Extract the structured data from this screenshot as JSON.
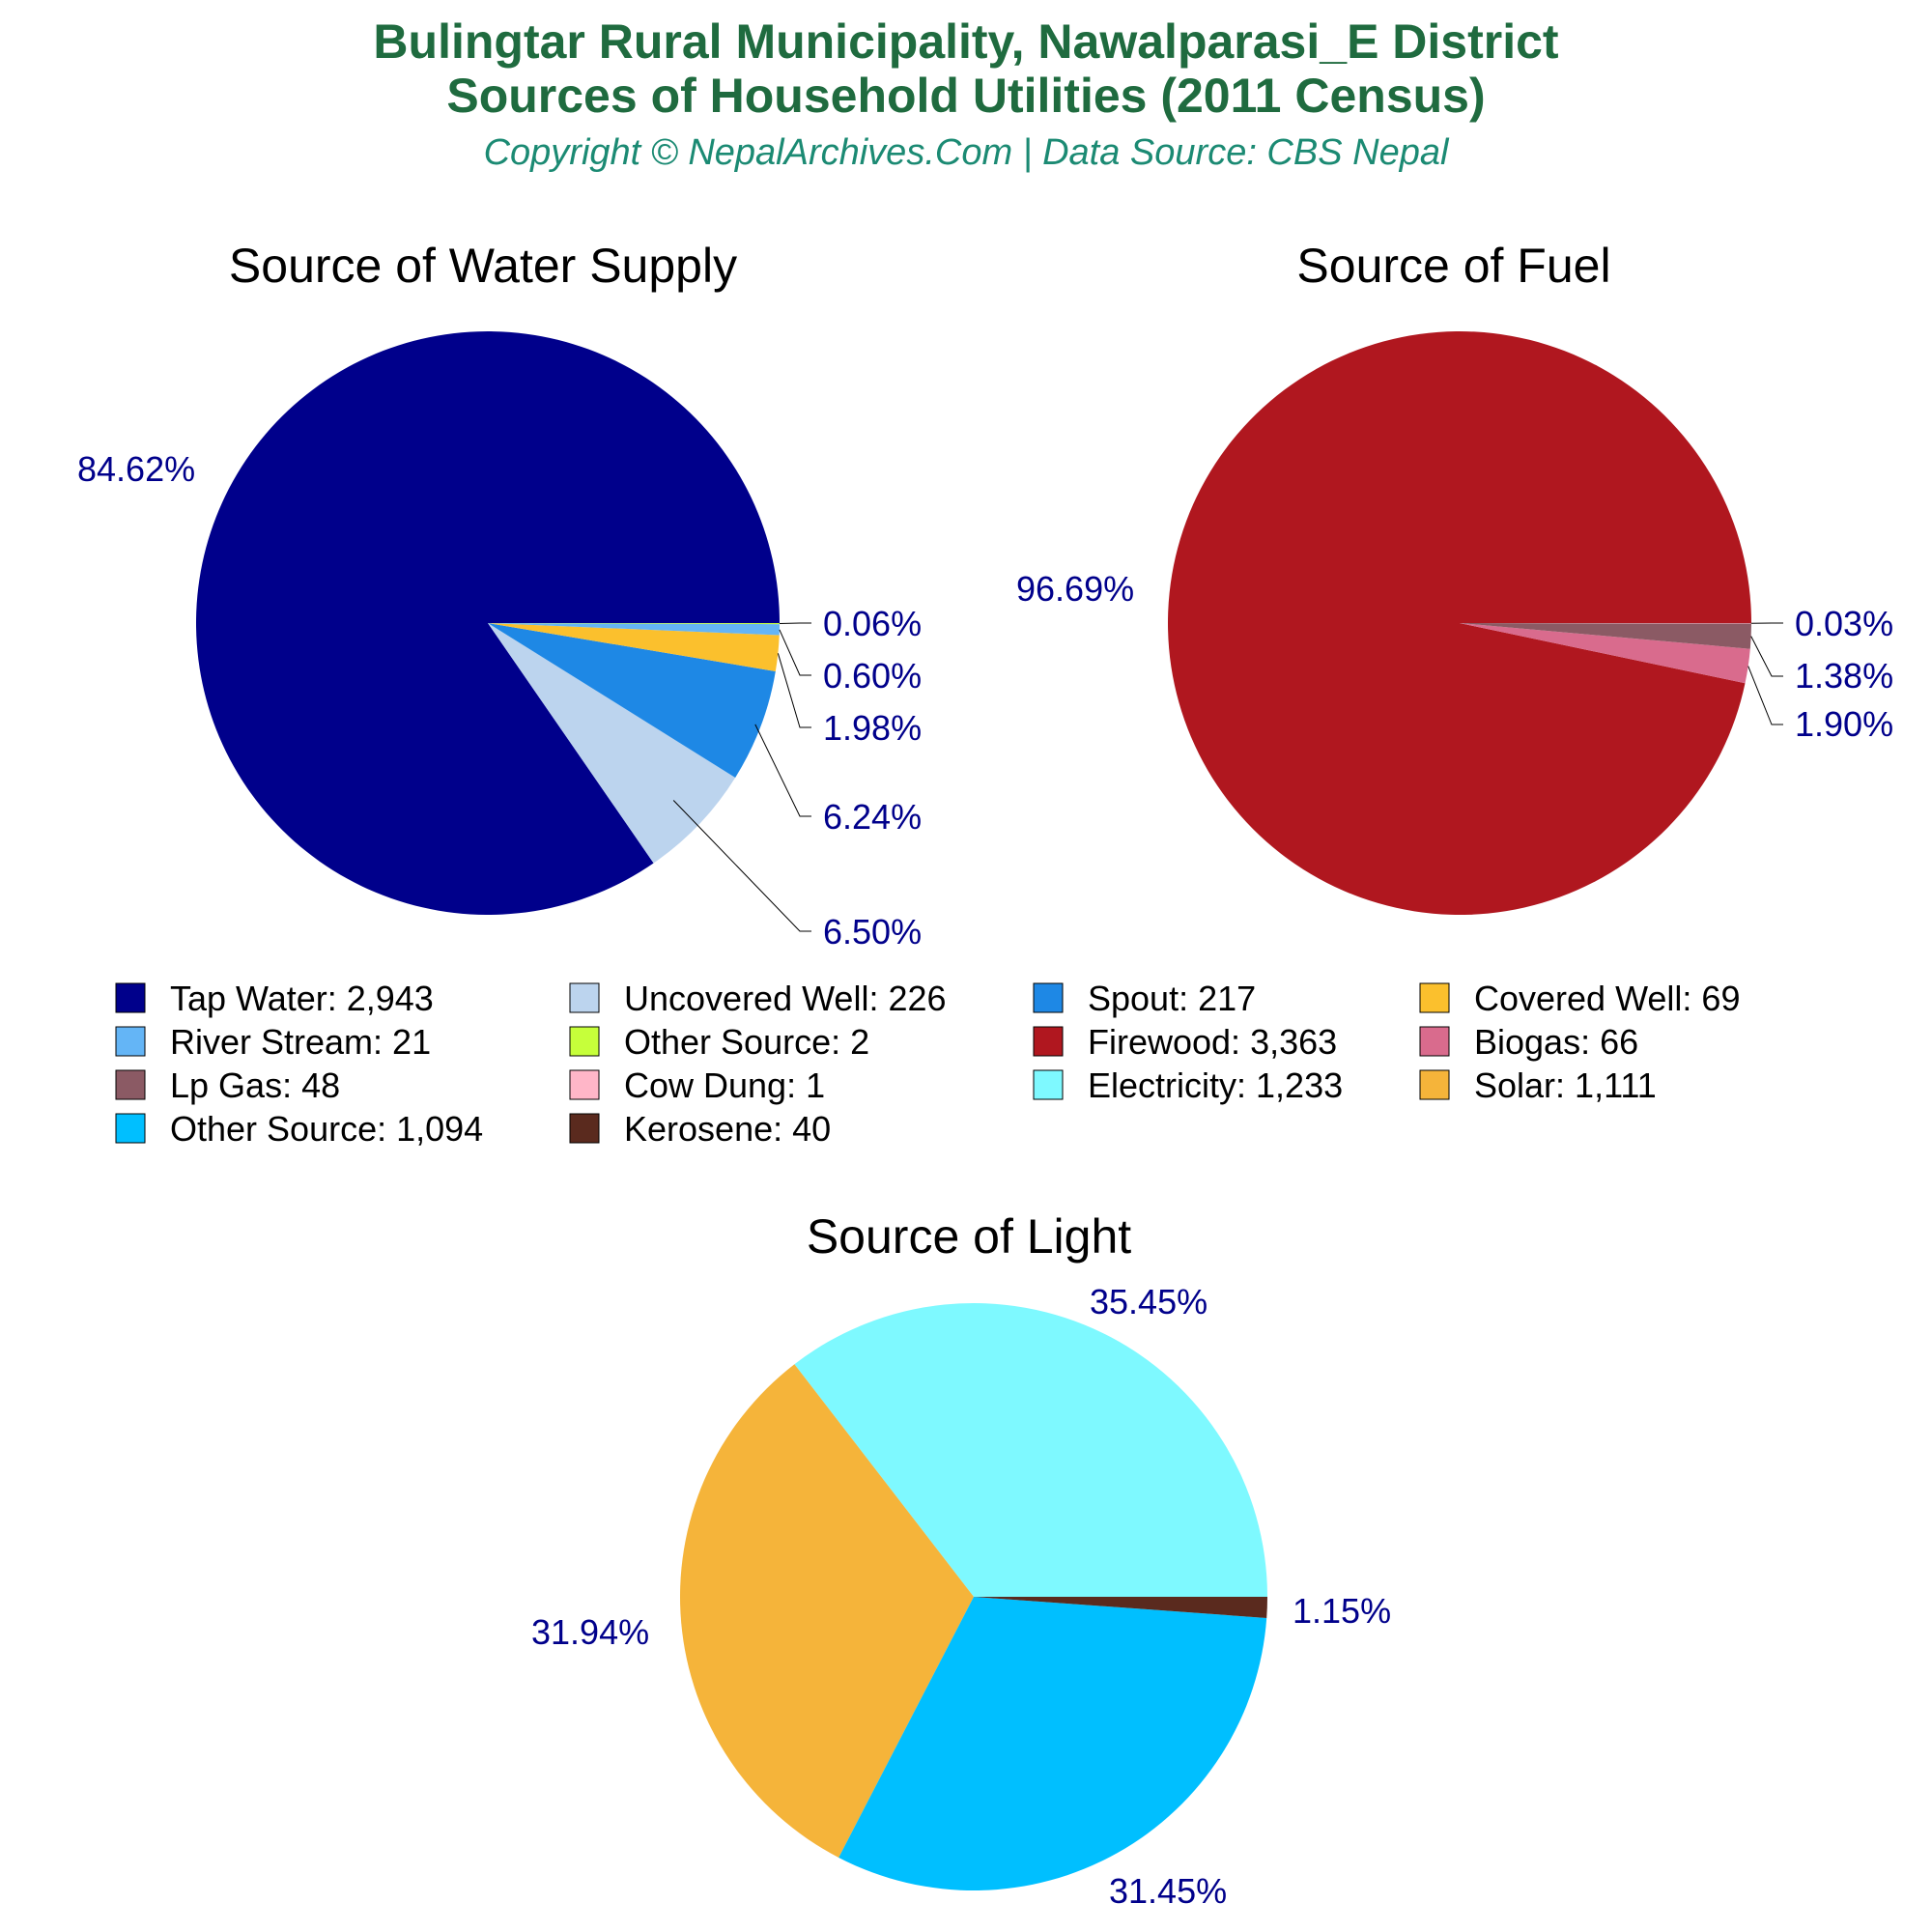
{
  "header": {
    "title_line1": "Bulingtar Rural Municipality, Nawalparasi_E District",
    "title_line2": "Sources of Household Utilities (2011 Census)",
    "subtitle": "Copyright © NepalArchives.Com | Data Source: CBS Nepal"
  },
  "chart_data": [
    {
      "type": "pie",
      "title": "Source of Water Supply",
      "slices": [
        {
          "label": "Tap Water",
          "value": 2943,
          "percent": "84.62%",
          "color": "#00008b"
        },
        {
          "label": "Uncovered Well",
          "value": 226,
          "percent": "6.50%",
          "color": "#bcd4ee"
        },
        {
          "label": "Spout",
          "value": 217,
          "percent": "6.24%",
          "color": "#1e88e5"
        },
        {
          "label": "Covered Well",
          "value": 69,
          "percent": "1.98%",
          "color": "#fbc02d"
        },
        {
          "label": "River Stream",
          "value": 21,
          "percent": "0.60%",
          "color": "#64b5f6"
        },
        {
          "label": "Other Source",
          "value": 2,
          "percent": "0.06%",
          "color": "#c6ff3a"
        }
      ]
    },
    {
      "type": "pie",
      "title": "Source of Fuel",
      "slices": [
        {
          "label": "Firewood",
          "value": 3363,
          "percent": "96.69%",
          "color": "#b0171f"
        },
        {
          "label": "Biogas",
          "value": 66,
          "percent": "1.90%",
          "color": "#d96b8d"
        },
        {
          "label": "Lp Gas",
          "value": 48,
          "percent": "1.38%",
          "color": "#8b5a64"
        },
        {
          "label": "Cow Dung",
          "value": 1,
          "percent": "0.03%",
          "color": "#ffb6c8"
        }
      ]
    },
    {
      "type": "pie",
      "title": "Source of Light",
      "slices": [
        {
          "label": "Electricity",
          "value": 1233,
          "percent": "35.45%",
          "color": "#7ef9ff"
        },
        {
          "label": "Solar",
          "value": 1111,
          "percent": "31.94%",
          "color": "#f5b43a"
        },
        {
          "label": "Other Source",
          "value": 1094,
          "percent": "31.45%",
          "color": "#00bfff"
        },
        {
          "label": "Kerosene",
          "value": 40,
          "percent": "1.15%",
          "color": "#5a2a1e"
        }
      ]
    }
  ],
  "legend": [
    {
      "text": "Tap Water: 2,943",
      "color": "#00008b"
    },
    {
      "text": "Uncovered Well: 226",
      "color": "#bcd4ee"
    },
    {
      "text": "Spout: 217",
      "color": "#1e88e5"
    },
    {
      "text": "Covered Well: 69",
      "color": "#fbc02d"
    },
    {
      "text": "River Stream: 21",
      "color": "#64b5f6"
    },
    {
      "text": "Other Source: 2",
      "color": "#c6ff3a"
    },
    {
      "text": "Firewood: 3,363",
      "color": "#b0171f"
    },
    {
      "text": "Biogas: 66",
      "color": "#d96b8d"
    },
    {
      "text": "Lp Gas: 48",
      "color": "#8b5a64"
    },
    {
      "text": "Cow Dung: 1",
      "color": "#ffb6c8"
    },
    {
      "text": "Electricity: 1,233",
      "color": "#7ef9ff"
    },
    {
      "text": "Solar: 1,111",
      "color": "#f5b43a"
    },
    {
      "text": "Other Source: 1,094",
      "color": "#00bfff"
    },
    {
      "text": "Kerosene: 40",
      "color": "#5a2a1e"
    }
  ]
}
